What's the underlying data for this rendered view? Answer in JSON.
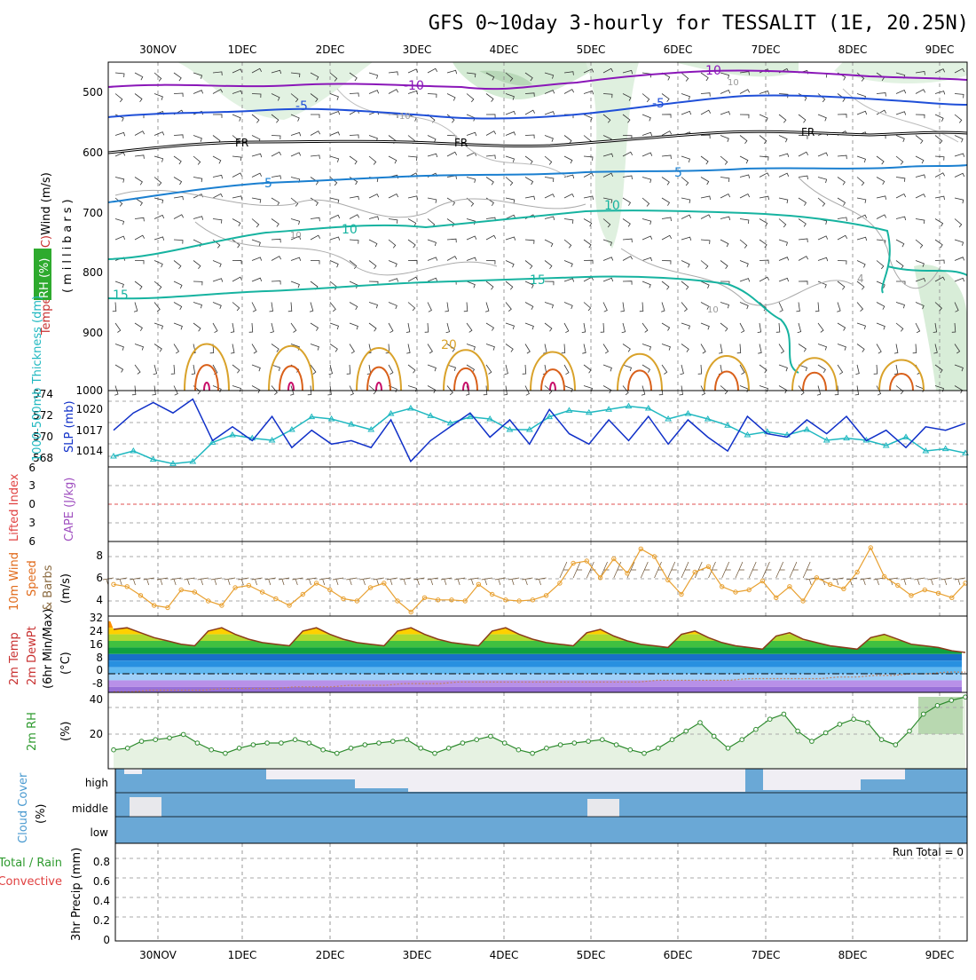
{
  "header": {
    "title": "GFS 0~10day 3-hourly for TESSALIT (1E, 20.25N)"
  },
  "time_axis": {
    "labels": [
      "30NOV",
      "1DEC",
      "2DEC",
      "3DEC",
      "4DEC",
      "5DEC",
      "6DEC",
      "7DEC",
      "8DEC",
      "9DEC"
    ]
  },
  "panels": {
    "upper": {
      "titles": [
        "Wind (m/s)",
        "Temperature (°C)",
        "RH (%)"
      ],
      "pressure_label": "(millibars)",
      "rh_legend": "RH (%)",
      "yticks": [
        "500",
        "600",
        "700",
        "800",
        "900",
        "1000"
      ],
      "contour_labels": {
        "purple": [
          "-10",
          "-10"
        ],
        "blue": [
          "-5",
          "-5"
        ],
        "freezing": [
          "FR",
          "FR",
          "FR"
        ],
        "sky": [
          "-5",
          "5"
        ],
        "teal": [
          "10",
          "10",
          "15",
          "15"
        ],
        "orange": [
          "20"
        ],
        "grey": [
          "10",
          "10",
          "10",
          "10",
          "4"
        ]
      }
    },
    "thickness": {
      "label_left": "1000-500mb Thickness (dm)",
      "label_right": "SLP (mb)",
      "left_ticks": [
        "574",
        "572",
        "570",
        "568"
      ],
      "right_ticks": [
        "1020",
        "1017",
        "1014"
      ]
    },
    "stability": {
      "label_left": "Lifted Index",
      "label_right": "CAPE (J/kg)",
      "ticks": [
        "6",
        "3",
        "0",
        "3",
        "6"
      ]
    },
    "wind10m": {
      "label_a": "10m Wind",
      "label_b": "Speed",
      "label_c": "& Barbs",
      "units": "(m/s)",
      "ticks": [
        "8",
        "6",
        "4"
      ]
    },
    "temp2m": {
      "label_a": "2m Temp",
      "label_b": "2m DewPt",
      "label_c": "(6hr Min/Max)",
      "units": "(°C)",
      "ticks": [
        "32",
        "24",
        "16",
        "8",
        "0",
        "-8"
      ]
    },
    "rh2m": {
      "label": "2m RH",
      "units": "(%)",
      "ticks": [
        "40",
        "20"
      ]
    },
    "cloud": {
      "label": "Cloud Cover",
      "units": "(%)",
      "levels": [
        "high",
        "middle",
        "low"
      ]
    },
    "precip": {
      "label_a": "Total / Rain",
      "label_b": "Convective",
      "label_c": "3hr Precip (mm)",
      "ticks": [
        "0.8",
        "0.6",
        "0.4",
        "0.2",
        "0"
      ],
      "run_total": "Run Total = 0"
    }
  },
  "colors": {
    "purple": "#8a16b8",
    "blue": "#1f4fd8",
    "sky": "#1a7fd0",
    "teal": "#16b3a0",
    "orange": "#d9a22a",
    "darkorange": "#d9601a",
    "magenta": "#c8106a",
    "slp": "#1030c8",
    "thickness": "#20b8c0",
    "rh": "#2e8b2e",
    "cloud": "#6aa8d6"
  },
  "chart_data": [
    {
      "type": "line",
      "panel": "1000-500mb thickness and SLP",
      "series": [
        {
          "name": "1000-500mb Thickness (dm)",
          "axis": "left",
          "values": [
            568.5,
            569.0,
            568.2,
            567.8,
            568.0,
            569.8,
            570.5,
            570.2,
            570.0,
            571.0,
            572.2,
            572.0,
            571.5,
            571.0,
            572.5,
            573.0,
            572.3,
            571.6,
            572.2,
            572.0,
            571.0,
            571.0,
            572.2,
            572.8,
            572.6,
            572.9,
            573.2,
            573.0,
            572.0,
            572.5,
            572.0,
            571.4,
            570.5,
            570.8,
            570.5,
            571.0,
            570.0,
            570.2,
            570.0,
            569.5,
            570.3,
            569.0,
            569.2,
            568.8
          ]
        },
        {
          "name": "SLP (mb)",
          "axis": "right",
          "values": [
            1017.5,
            1020.0,
            1021.5,
            1020.0,
            1022.0,
            1016.0,
            1018.0,
            1016.0,
            1019.5,
            1015.0,
            1017.5,
            1015.5,
            1016.0,
            1015.0,
            1019.0,
            1013.0,
            1016.0,
            1018.0,
            1020.0,
            1016.5,
            1019.0,
            1015.5,
            1020.5,
            1017.0,
            1015.5,
            1019.0,
            1016.0,
            1019.5,
            1015.5,
            1019.0,
            1016.5,
            1014.5,
            1019.5,
            1017.0,
            1016.5,
            1019.0,
            1017.0,
            1019.5,
            1016.0,
            1017.5,
            1015.0,
            1018.0,
            1017.5,
            1018.5
          ]
        }
      ]
    },
    {
      "type": "line",
      "panel": "10m wind speed",
      "series": [
        {
          "name": "10m Wind Speed (m/s)",
          "values": [
            5.5,
            5.3,
            4.5,
            3.6,
            3.4,
            5.0,
            4.8,
            4.0,
            3.6,
            5.2,
            5.4,
            4.8,
            4.2,
            3.6,
            4.6,
            5.6,
            5.0,
            4.2,
            4.0,
            5.2,
            5.6,
            4.0,
            3.0,
            4.3,
            4.1,
            4.1,
            4.0,
            5.5,
            4.6,
            4.1,
            4.0,
            4.1,
            4.5,
            5.6,
            7.4,
            7.6,
            6.1,
            7.8,
            6.5,
            8.7,
            8.0,
            5.9,
            4.6,
            6.6,
            7.1,
            5.3,
            4.8,
            5.0,
            5.8,
            4.3,
            5.3,
            4.0,
            6.1,
            5.5,
            5.1,
            6.6,
            8.8,
            6.2,
            5.4,
            4.5,
            5.0,
            4.7,
            4.3,
            5.6
          ]
        }
      ]
    },
    {
      "type": "area",
      "panel": "2m temperature",
      "series": [
        {
          "name": "2m Temp (°C)",
          "values": [
            27,
            28,
            25,
            22,
            20,
            18,
            17,
            26,
            28,
            24,
            21,
            19,
            18,
            17,
            26,
            28,
            24,
            21,
            19,
            18,
            17,
            26,
            28,
            24,
            21,
            19,
            18,
            17,
            26,
            28,
            24,
            21,
            19,
            18,
            17,
            25,
            27,
            23,
            20,
            18,
            17,
            16,
            24,
            26,
            22,
            19,
            17,
            16,
            15,
            23,
            25,
            21,
            19,
            17,
            16,
            15,
            22,
            24,
            21,
            18,
            17,
            16,
            14,
            13
          ]
        },
        {
          "name": "2m DewPt (°C)",
          "values": [
            -11,
            -11,
            -10,
            -10,
            -10,
            -10,
            -9,
            -9,
            -9,
            -9,
            -8,
            -8,
            -8,
            -7,
            -7,
            -7,
            -6,
            -6,
            -6,
            -5,
            -5,
            -5,
            -5,
            -5,
            -5,
            -5,
            -5,
            -5,
            -5,
            -5,
            -4,
            -4,
            -4,
            -4,
            -4,
            -3,
            -3,
            -3,
            -3,
            -3,
            -2,
            -2,
            -1,
            -1,
            0,
            0,
            1,
            1
          ]
        }
      ]
    },
    {
      "type": "area",
      "panel": "2m relative humidity",
      "series": [
        {
          "name": "2m RH (%)",
          "values": [
            9,
            10,
            14,
            15,
            16,
            18,
            13,
            9,
            7,
            10,
            12,
            13,
            13,
            15,
            13,
            9,
            7,
            10,
            12,
            13,
            14,
            15,
            10,
            7,
            10,
            13,
            15,
            17,
            13,
            9,
            7,
            10,
            12,
            13,
            14,
            15,
            12,
            9,
            7,
            10,
            15,
            20,
            25,
            17,
            10,
            15,
            21,
            27,
            30,
            20,
            14,
            19,
            24,
            27,
            25,
            15,
            12,
            20,
            30,
            35,
            38,
            40
          ]
        }
      ]
    },
    {
      "type": "line",
      "panel": "3hr precipitation",
      "series": [
        {
          "name": "3hr Precip (mm)",
          "values": [
            0,
            0,
            0,
            0,
            0,
            0,
            0,
            0,
            0,
            0
          ]
        }
      ]
    }
  ]
}
